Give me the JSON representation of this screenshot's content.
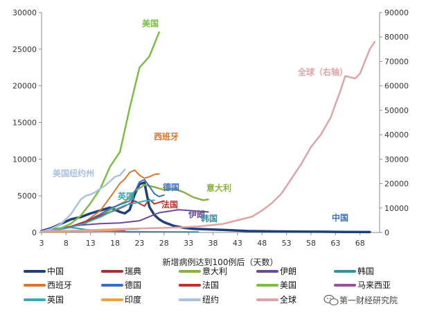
{
  "chart_data": {
    "type": "line",
    "xlabel": "新增病例达到100例后（天数）",
    "x_ticks": [
      3,
      8,
      13,
      18,
      23,
      28,
      33,
      38,
      43,
      48,
      53,
      58,
      63,
      68
    ],
    "xlim": [
      3,
      72
    ],
    "y_left": {
      "ticks": [
        0,
        5000,
        10000,
        15000,
        20000,
        25000,
        30000
      ],
      "ylim": [
        0,
        30000
      ]
    },
    "y_right": {
      "ticks": [
        0,
        10000,
        20000,
        30000,
        40000,
        50000,
        60000,
        70000,
        80000,
        90000
      ],
      "ylim": [
        0,
        90000
      ]
    },
    "grid": false,
    "legend_position": "bottom",
    "series": [
      {
        "key": "china",
        "name": "中国",
        "color": "#1f3f7a",
        "width": 3.5,
        "axis": "left",
        "x": [
          3,
          5,
          7,
          9,
          11,
          13,
          15,
          17,
          19,
          20,
          21,
          22,
          23,
          24,
          25,
          26,
          27,
          28,
          30,
          32,
          34,
          36,
          38,
          40,
          45,
          50,
          55,
          60,
          65,
          70
        ],
        "y": [
          200,
          600,
          1200,
          1800,
          2100,
          2600,
          3000,
          3400,
          2800,
          2600,
          3100,
          5200,
          6600,
          6800,
          3500,
          2400,
          1800,
          1400,
          900,
          650,
          500,
          450,
          400,
          350,
          200,
          150,
          120,
          100,
          80,
          60
        ]
      },
      {
        "key": "sweden",
        "name": "瑞典",
        "color": "#9c3535",
        "width": 1.8,
        "axis": "left",
        "x": [
          3,
          8,
          13,
          18,
          23
        ],
        "y": [
          80,
          200,
          300,
          400,
          500
        ]
      },
      {
        "key": "italy",
        "name": "意大利",
        "color": "#8bb04a",
        "width": 2.5,
        "axis": "left",
        "x": [
          3,
          6,
          9,
          12,
          15,
          18,
          20,
          22,
          24,
          26,
          28,
          30,
          32,
          34,
          36,
          37
        ],
        "y": [
          150,
          400,
          800,
          1300,
          2300,
          3500,
          4200,
          5600,
          6500,
          6200,
          5800,
          6000,
          5500,
          4800,
          4400,
          4500
        ]
      },
      {
        "key": "iran",
        "name": "伊朗",
        "color": "#6b4a96",
        "width": 2.0,
        "axis": "left",
        "x": [
          3,
          7,
          11,
          15,
          19,
          23,
          27,
          29,
          31,
          33,
          35,
          37
        ],
        "y": [
          200,
          600,
          1000,
          1200,
          1300,
          1600,
          2700,
          2900,
          3100,
          3000,
          2900,
          2800
        ]
      },
      {
        "key": "korea",
        "name": "韩国",
        "color": "#3b8ea0",
        "width": 1.8,
        "axis": "left",
        "x": [
          3,
          5,
          8,
          10,
          12,
          14,
          16,
          18,
          22,
          26,
          30,
          35
        ],
        "y": [
          200,
          500,
          700,
          600,
          400,
          300,
          200,
          150,
          120,
          100,
          90,
          80
        ]
      },
      {
        "key": "spain",
        "name": "西班牙",
        "color": "#d7762e",
        "width": 2.0,
        "axis": "left",
        "x": [
          3,
          6,
          9,
          12,
          15,
          17,
          19,
          20,
          21,
          22,
          23,
          24,
          25,
          26,
          27
        ],
        "y": [
          100,
          300,
          800,
          1500,
          3000,
          4800,
          6700,
          7300,
          8200,
          8500,
          7800,
          7400,
          7600,
          7900,
          8000
        ]
      },
      {
        "key": "germany",
        "name": "德国",
        "color": "#3a6fbf",
        "width": 2.0,
        "axis": "left",
        "x": [
          3,
          6,
          9,
          12,
          15,
          17,
          19,
          21,
          22,
          23,
          24,
          25,
          26,
          27,
          28
        ],
        "y": [
          100,
          300,
          800,
          1500,
          2500,
          3300,
          3800,
          4300,
          5500,
          6900,
          7200,
          6300,
          5300,
          4900,
          5100
        ]
      },
      {
        "key": "france",
        "name": "法国",
        "color": "#c0302a",
        "width": 2.0,
        "axis": "left",
        "x": [
          3,
          6,
          9,
          12,
          15,
          18,
          20,
          22,
          24,
          25,
          26,
          27,
          28
        ],
        "y": [
          100,
          400,
          800,
          1500,
          2300,
          3000,
          3600,
          4300,
          3600,
          4500,
          3900,
          4100,
          4300
        ]
      },
      {
        "key": "usa",
        "name": "美国",
        "color": "#7cbd45",
        "width": 2.5,
        "axis": "left",
        "x": [
          3,
          5,
          7,
          9,
          11,
          13,
          15,
          17,
          19,
          21,
          23,
          25,
          27
        ],
        "y": [
          100,
          300,
          600,
          1200,
          2300,
          4000,
          6000,
          9000,
          11000,
          17000,
          22500,
          24000,
          27300
        ]
      },
      {
        "key": "malaysia",
        "name": "马来西亚",
        "color": "#9a4fa0",
        "width": 2.0,
        "axis": "left",
        "x": [
          3,
          8,
          13,
          18,
          20
        ],
        "y": [
          100,
          150,
          180,
          200,
          210
        ]
      },
      {
        "key": "uk",
        "name": "英国",
        "color": "#3aa8b8",
        "width": 2.0,
        "axis": "left",
        "x": [
          3,
          6,
          9,
          12,
          15,
          18,
          20,
          22,
          24,
          26
        ],
        "y": [
          100,
          300,
          700,
          1300,
          2100,
          3100,
          3700,
          4000,
          4300,
          4400
        ]
      },
      {
        "key": "india",
        "name": "印度",
        "color": "#f0a040",
        "width": 2.0,
        "axis": "left",
        "x": [
          3,
          8,
          13,
          18,
          20
        ],
        "y": [
          100,
          120,
          200,
          300,
          400
        ]
      },
      {
        "key": "nyc",
        "name": "纽约",
        "color": "#a9c2de",
        "width": 2.5,
        "axis": "left",
        "x": [
          3,
          5,
          7,
          9,
          11,
          12,
          13,
          14,
          15,
          16,
          17,
          18,
          19,
          20
        ],
        "y": [
          100,
          500,
          1200,
          2500,
          4500,
          5000,
          5200,
          5500,
          6000,
          6400,
          7000,
          7600,
          7800,
          8600
        ]
      },
      {
        "key": "global",
        "name": "全球",
        "color": "#e0a3a3",
        "width": 2.5,
        "axis": "right",
        "x": [
          3,
          10,
          20,
          30,
          35,
          40,
          43,
          46,
          48,
          50,
          52,
          54,
          56,
          58,
          60,
          62,
          64,
          65,
          66,
          67,
          68,
          69,
          70,
          71
        ],
        "y": [
          500,
          800,
          1500,
          2000,
          2500,
          3500,
          5000,
          6500,
          9000,
          12000,
          16000,
          22000,
          28000,
          35000,
          40000,
          47000,
          58000,
          64000,
          63500,
          63000,
          65000,
          70000,
          75000,
          78000
        ]
      }
    ],
    "annotations": [
      {
        "key": "usa",
        "text": "美国",
        "color": "#7cbd45"
      },
      {
        "key": "spain",
        "text": "西班牙",
        "color": "#d7762e"
      },
      {
        "key": "nyc",
        "text": "美国纽约州",
        "color": "#a9c2de"
      },
      {
        "key": "uk",
        "text": "英国",
        "color": "#3aa8b8"
      },
      {
        "key": "germany",
        "text": "德国",
        "color": "#3a6fbf"
      },
      {
        "key": "italy",
        "text": "意大利",
        "color": "#8bb04a"
      },
      {
        "key": "france",
        "text": "法国",
        "color": "#c0302a"
      },
      {
        "key": "iran",
        "text": "伊朗",
        "color": "#6b4a96"
      },
      {
        "key": "korea",
        "text": "韩国",
        "color": "#3b8ea0"
      },
      {
        "key": "china",
        "text": "中国",
        "color": "#3a6fbf"
      },
      {
        "key": "global",
        "text": "全球（右轴）",
        "color": "#e0a3a3"
      }
    ],
    "legend_order": [
      "china",
      "sweden",
      "italy",
      "iran",
      "korea",
      "spain",
      "germany",
      "france",
      "usa",
      "malaysia",
      "uk",
      "india",
      "nyc",
      "global"
    ]
  },
  "watermark": {
    "icon": "wechat-icon",
    "text": "第一财经研究院"
  }
}
